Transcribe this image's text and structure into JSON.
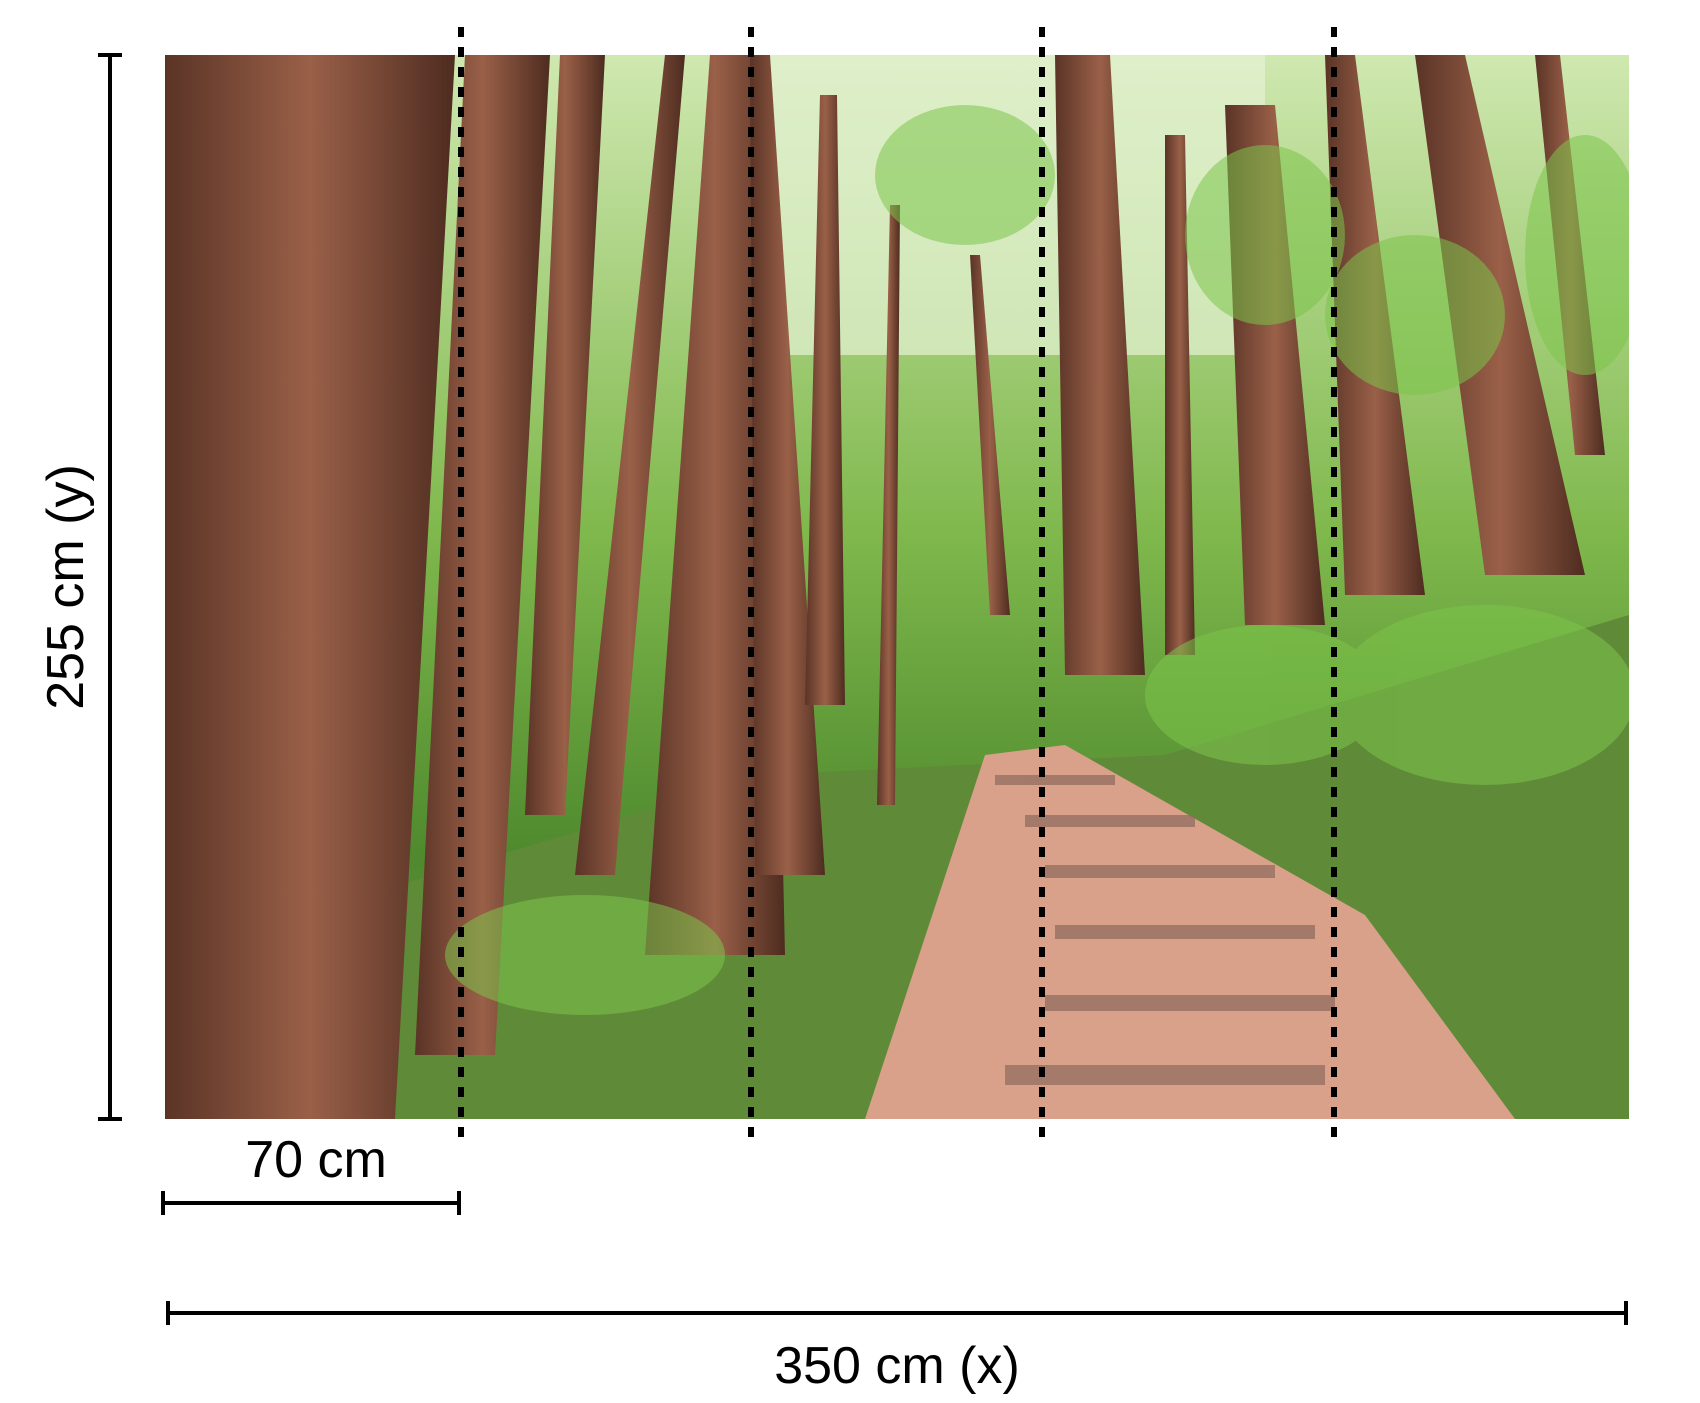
{
  "dimensions": {
    "height_label": "255 cm (y)",
    "width_label": "350 cm (x)",
    "panel_width_label": "70 cm"
  },
  "panels": 5,
  "photo": {
    "subject": "redwood-forest-trail-with-stairs"
  },
  "colors": {
    "lines": "#000000",
    "trunk": "#7a4a38",
    "foliage": "#6fae3e",
    "path": "#d9a08a"
  }
}
